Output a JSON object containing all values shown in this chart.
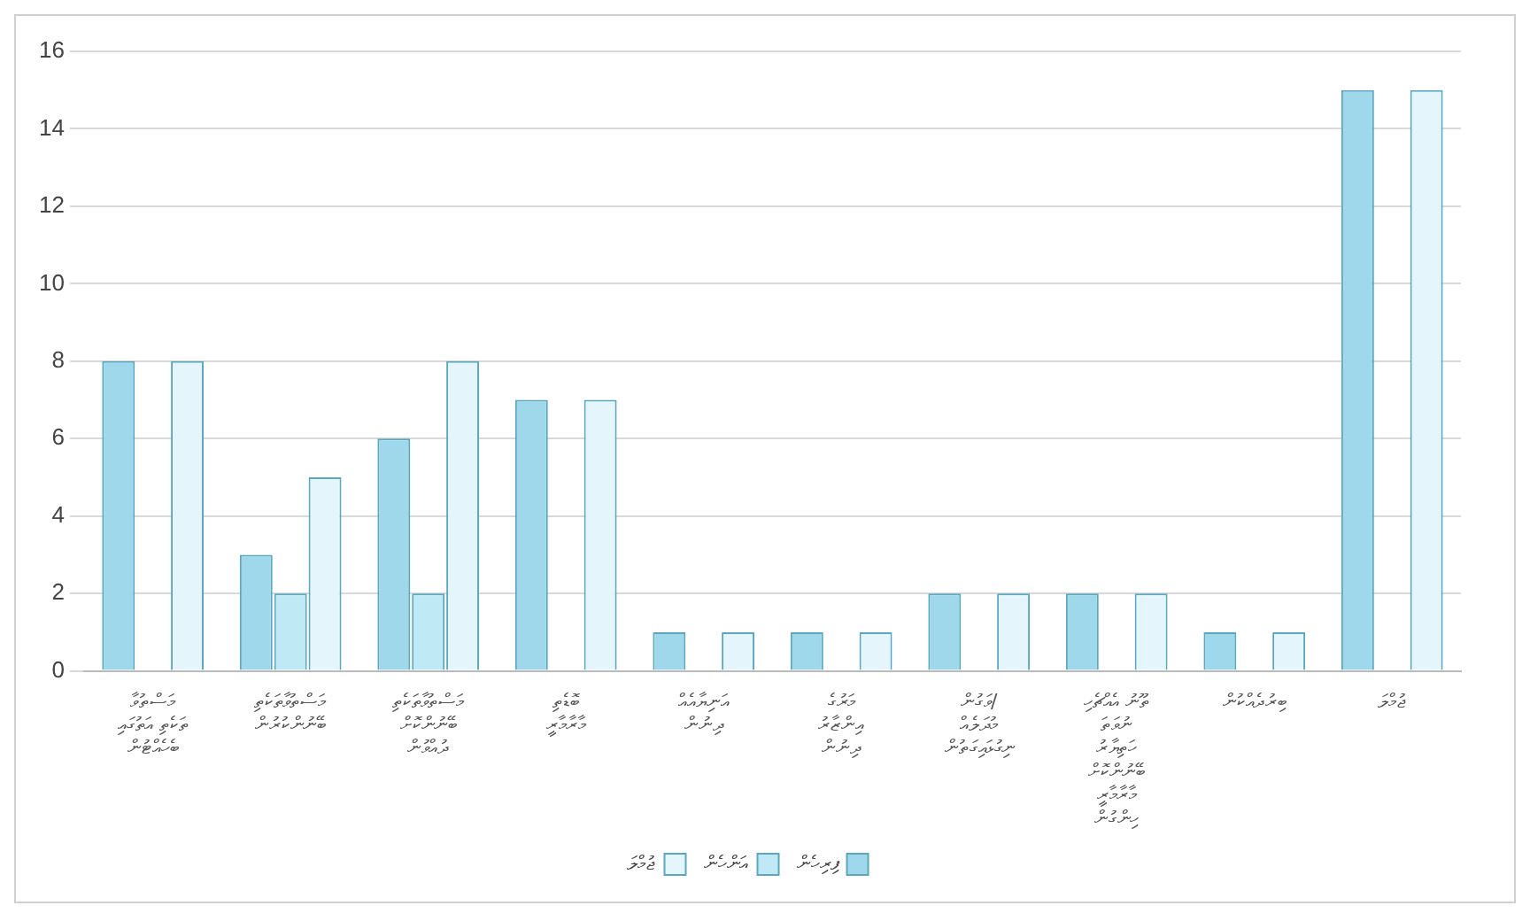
{
  "chart_data": {
    "type": "bar",
    "categories": [
      "މަސްތުވާ\nތަކެތި އަތުގައި\nބެހެއްޓުން",
      "މަސްތުވާތަކެތި\nބޭނުންކުރުން",
      "މަސްތުވާތަކެތި\nބޭނުންކޮށް\nދުއްވުން",
      "ބޮޑެތި\nމާރާމާރީ",
      "އަނިޔާއެއް\nދިނުން",
      "މަރުގެ\nއިންޒާރު\nދިނުން",
      "ވަގުން/\nމުދަލެއް\nނިގުޅައިގަތުން",
      "ތޫނު އެއްޗެހި\nނުވަތަ\nހަތިޔާރު\nބޭނުންކޮށް\nމާރާމާރީ\nހިންގުން",
      "ބިރުދެއްކުން",
      "ޖުމްލަ"
    ],
    "series": [
      {
        "name": "ފިރިހެން",
        "color": "#9fd8ea",
        "values": [
          8,
          3,
          6,
          7,
          1,
          1,
          2,
          2,
          1,
          15
        ]
      },
      {
        "name": "އަންހެން",
        "color": "#bfeaf5",
        "values": [
          0,
          2,
          2,
          0,
          0,
          0,
          0,
          0,
          0,
          0
        ]
      },
      {
        "name": "ޖުމްލަ",
        "color": "#e4f6fb",
        "values": [
          8,
          5,
          8,
          7,
          1,
          1,
          2,
          2,
          1,
          15
        ]
      }
    ],
    "ylim": [
      0,
      16
    ],
    "yticks": [
      0,
      2,
      4,
      6,
      8,
      10,
      12,
      14,
      16
    ],
    "grid": "y",
    "legend": "bottom"
  }
}
